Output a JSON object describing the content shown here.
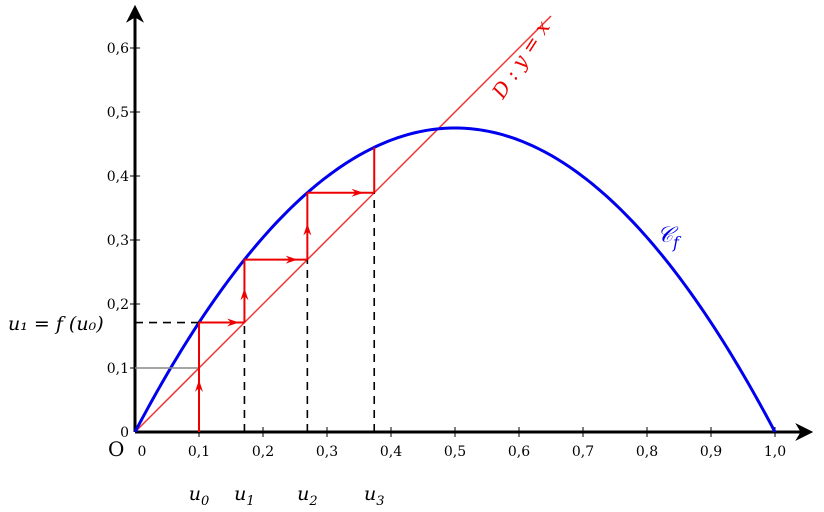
{
  "chart_data": {
    "type": "line",
    "xlim": [
      0,
      1.0
    ],
    "ylim": [
      0,
      0.6
    ],
    "x_ticks": [
      "0",
      "0,1",
      "0,2",
      "0,3",
      "0,4",
      "0,5",
      "0,6",
      "0,7",
      "0,8",
      "0,9",
      "1,0"
    ],
    "y_ticks": [
      "0",
      "0,1",
      "0,2",
      "0,3",
      "0,4",
      "0,5",
      "0,6"
    ],
    "origin_label": "O",
    "curve": {
      "label": "𝒞",
      "subscript": "f",
      "color": "#0000ee",
      "function": "1.9*x*(1-x)"
    },
    "line": {
      "label": "D : y = x",
      "color": "#ee0000"
    },
    "sequence": {
      "values": [
        0.1,
        0.171,
        0.2693,
        0.3738
      ],
      "labels": [
        "u",
        "u",
        "u",
        "u"
      ],
      "subscripts": [
        "0",
        "1",
        "2",
        "3"
      ],
      "color": "#ee0000"
    },
    "annotations": {
      "u1_equals": "u₁ = f (u₀)"
    },
    "grid": false
  }
}
